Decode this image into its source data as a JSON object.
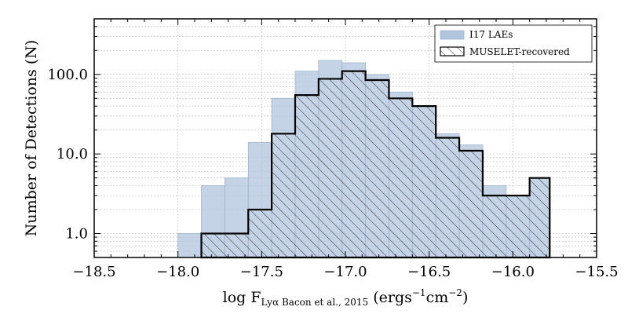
{
  "chart_data": {
    "type": "bar",
    "title": "",
    "xlabel": {
      "prefix": "log F",
      "subscript": "Lyα  Bacon et al., 2015",
      "suffix": " (ergs",
      "sup1": "−1",
      "mid": "cm",
      "sup2": "−2",
      "end": ")"
    },
    "ylabel": "Number of Detections (N)",
    "xlim": [
      -18.5,
      -15.5
    ],
    "ylim": [
      0.5,
      500
    ],
    "yscale": "log",
    "grid": true,
    "legend_position": "top-right",
    "xticks": [
      {
        "value": -18.5,
        "label": "−18.5"
      },
      {
        "value": -18.0,
        "label": "−18.0"
      },
      {
        "value": -17.5,
        "label": "−17.5"
      },
      {
        "value": -17.0,
        "label": "−17.0"
      },
      {
        "value": -16.5,
        "label": "−16.5"
      },
      {
        "value": -16.0,
        "label": "−16.0"
      },
      {
        "value": -15.5,
        "label": "−15.5"
      }
    ],
    "yticks": [
      {
        "value": 1,
        "label": "1.0"
      },
      {
        "value": 10,
        "label": "10.0"
      },
      {
        "value": 100,
        "label": "100.0"
      }
    ],
    "bin_edges": [
      -18.0,
      -17.86,
      -17.72,
      -17.58,
      -17.44,
      -17.3,
      -17.16,
      -17.02,
      -16.88,
      -16.74,
      -16.6,
      -16.46,
      -16.32,
      -16.18,
      -16.04,
      -15.9,
      -15.78
    ],
    "series": [
      {
        "name": "I17 LAEs",
        "style": "filled",
        "color": "#b0c4de",
        "values": [
          1,
          4,
          5,
          14,
          50,
          110,
          150,
          140,
          100,
          60,
          40,
          18,
          13,
          4,
          3,
          5
        ]
      },
      {
        "name": "MUSELET-recovered",
        "style": "hatched-step",
        "color": "#000000",
        "values": [
          0,
          1,
          1,
          2,
          18,
          55,
          88,
          110,
          85,
          50,
          40,
          16,
          11,
          3,
          3,
          5
        ]
      }
    ]
  }
}
